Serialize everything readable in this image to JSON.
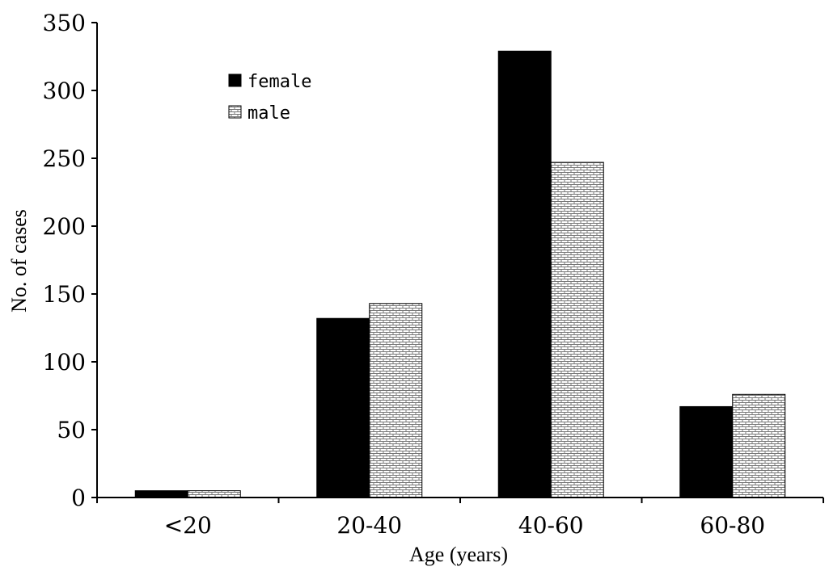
{
  "chart_data": {
    "type": "bar",
    "categories": [
      "<20",
      "20-40",
      "40-60",
      "60-80"
    ],
    "series": [
      {
        "name": "female",
        "values": [
          5,
          132,
          329,
          67
        ],
        "fill": "#000000"
      },
      {
        "name": "male",
        "values": [
          5,
          143,
          247,
          76
        ],
        "fill": "brick-pattern"
      }
    ],
    "xlabel": "Age (years)",
    "ylabel": "No. of cases",
    "ylim": [
      0,
      350
    ],
    "yticks": [
      0,
      50,
      100,
      150,
      200,
      250,
      300,
      350
    ],
    "grid": false,
    "legend_position": "top-left"
  }
}
